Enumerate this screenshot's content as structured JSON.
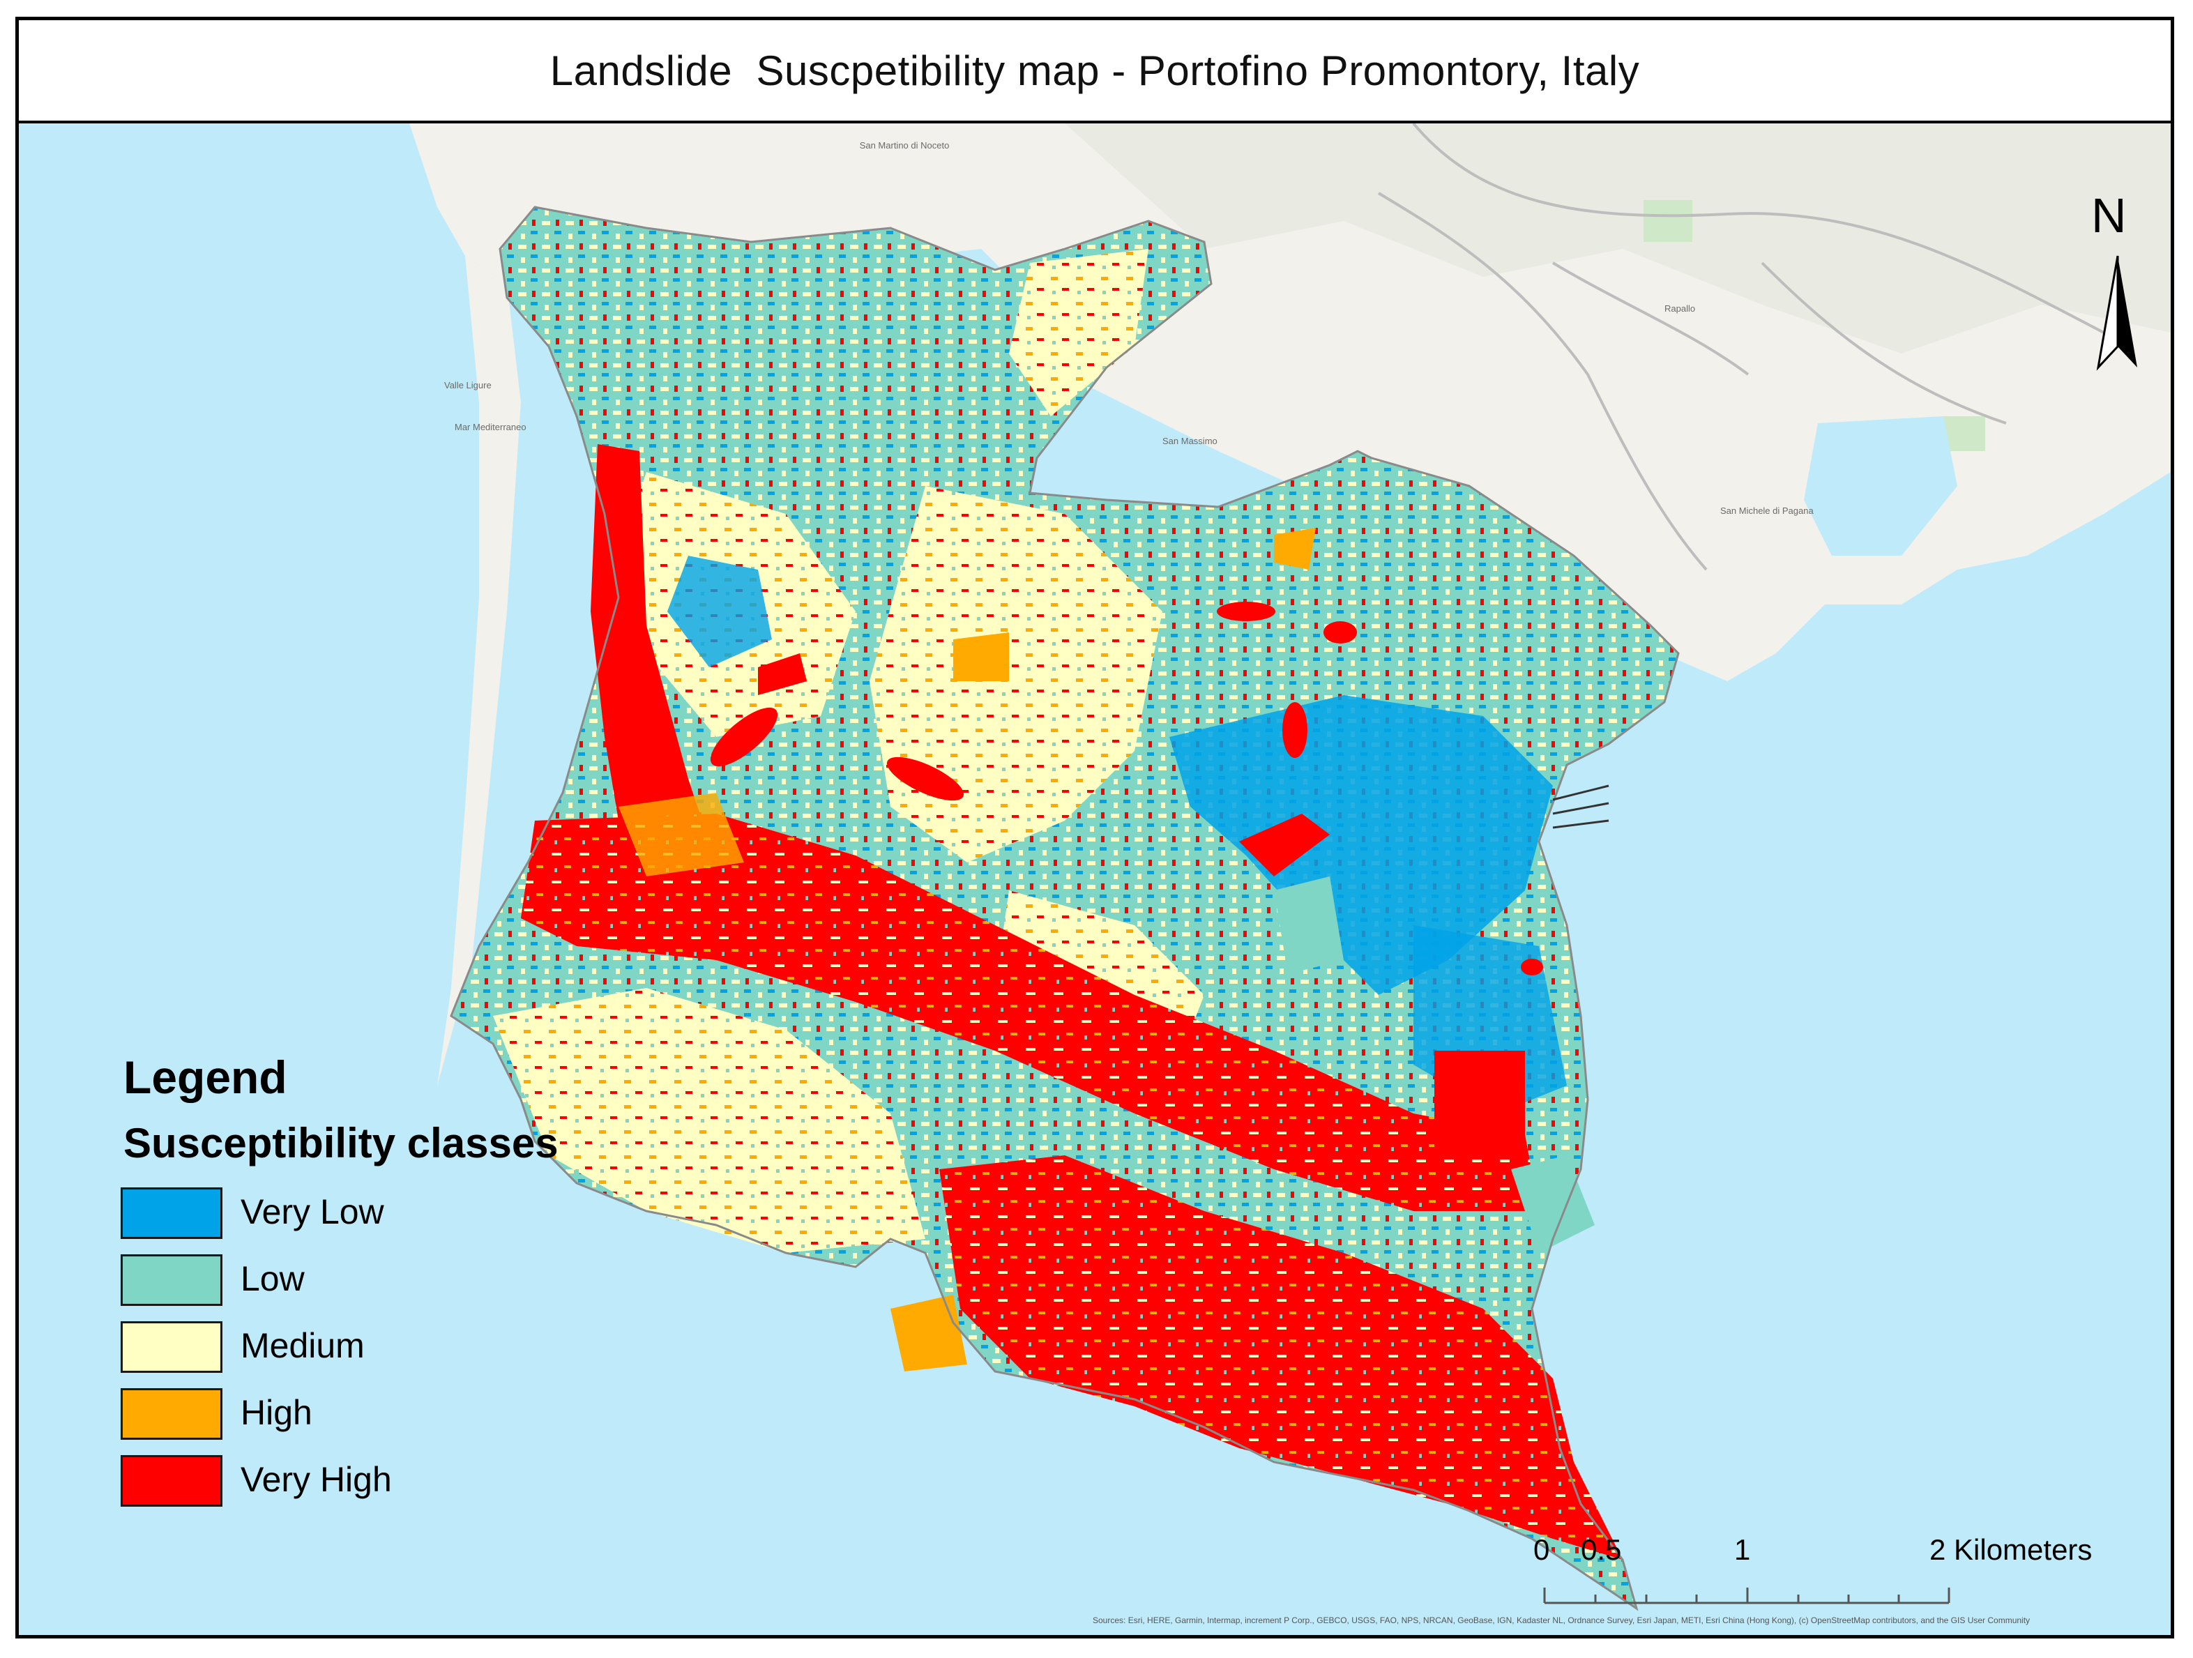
{
  "title": "Landslide  Suscpetibility map - Portofino Promontory, Italy",
  "legend": {
    "title": "Legend",
    "subtitle": "Susceptibility classes",
    "items": [
      {
        "label": "Very Low",
        "color": "#00a3e8"
      },
      {
        "label": "Low",
        "color": "#7fd6c5"
      },
      {
        "label": "Medium",
        "color": "#ffffc4"
      },
      {
        "label": "High",
        "color": "#ffaa00"
      },
      {
        "label": "Very High",
        "color": "#ff0000"
      }
    ]
  },
  "north_arrow": {
    "label": "N"
  },
  "scale_bar": {
    "labels": [
      "0",
      "0.5",
      "1",
      "2 Kilometers"
    ]
  },
  "place_labels": [
    "San Martino di Noceto",
    "Valle Ligure",
    "Mar Mediterraneo",
    "San Massimo",
    "Rapallo",
    "San Michele di Pagana"
  ],
  "attribution": "Sources: Esri, HERE, Garmin, Intermap, increment P Corp., GEBCO, USGS, FAO, NPS, NRCAN, GeoBase, IGN, Kadaster NL, Ordnance Survey, Esri Japan, METI, Esri China (Hong Kong), (c) OpenStreetMap contributors, and the GIS User Community",
  "colors": {
    "sea": "#bfeaf9",
    "land": "#f2f1ec",
    "very_low": "#00a3e8",
    "low": "#7fd6c5",
    "medium": "#ffffc4",
    "high": "#ffaa00",
    "very_high": "#ff0000"
  }
}
